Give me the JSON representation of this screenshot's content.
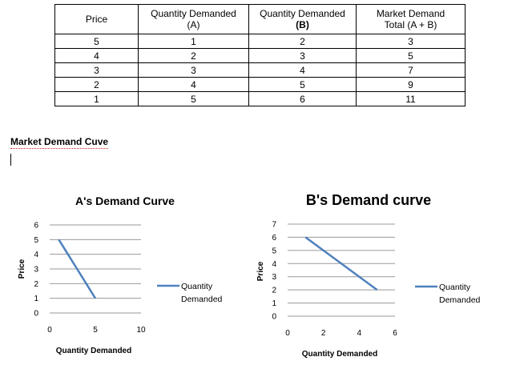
{
  "table": {
    "headers": [
      {
        "line1": "Price",
        "line2": ""
      },
      {
        "line1": "Quantity Demanded",
        "line2": "(A)"
      },
      {
        "line1": "Quantity Demanded",
        "line2": "(B)"
      },
      {
        "line1": "Market Demand",
        "line2": "Total (A + B)"
      }
    ],
    "rows": [
      [
        "5",
        "1",
        "2",
        "3"
      ],
      [
        "4",
        "2",
        "3",
        "5"
      ],
      [
        "3",
        "3",
        "4",
        "7"
      ],
      [
        "2",
        "4",
        "5",
        "9"
      ],
      [
        "1",
        "5",
        "6",
        "11"
      ]
    ]
  },
  "section_heading": "Market Demand Cuve",
  "chart_data": [
    {
      "type": "line",
      "title": "A's Demand Curve",
      "xlabel": "Quantity Demanded",
      "ylabel": "Price",
      "xlim": [
        0,
        10
      ],
      "ylim": [
        0,
        6
      ],
      "xticks": [
        0,
        5,
        10
      ],
      "yticks": [
        0,
        1,
        2,
        3,
        4,
        5,
        6
      ],
      "grid": true,
      "legend_position": "right",
      "line_color": "#4f81bd",
      "series": [
        {
          "name": "Quantity Demanded",
          "x": [
            1,
            2,
            3,
            4,
            5
          ],
          "y": [
            5,
            4,
            3,
            2,
            1
          ]
        }
      ]
    },
    {
      "type": "line",
      "title": "B's Demand curve",
      "xlabel": "Quantity Demanded",
      "ylabel": "Price",
      "xlim": [
        0,
        6
      ],
      "ylim": [
        0,
        7
      ],
      "xticks": [
        0,
        2,
        4,
        6
      ],
      "yticks": [
        0,
        1,
        2,
        3,
        4,
        5,
        6,
        7
      ],
      "grid": true,
      "legend_position": "right",
      "line_color": "#4f81bd",
      "series": [
        {
          "name": "Quantity Demanded",
          "x": [
            1,
            2,
            3,
            4,
            5
          ],
          "y": [
            6,
            5,
            4,
            3,
            2
          ]
        }
      ]
    }
  ]
}
